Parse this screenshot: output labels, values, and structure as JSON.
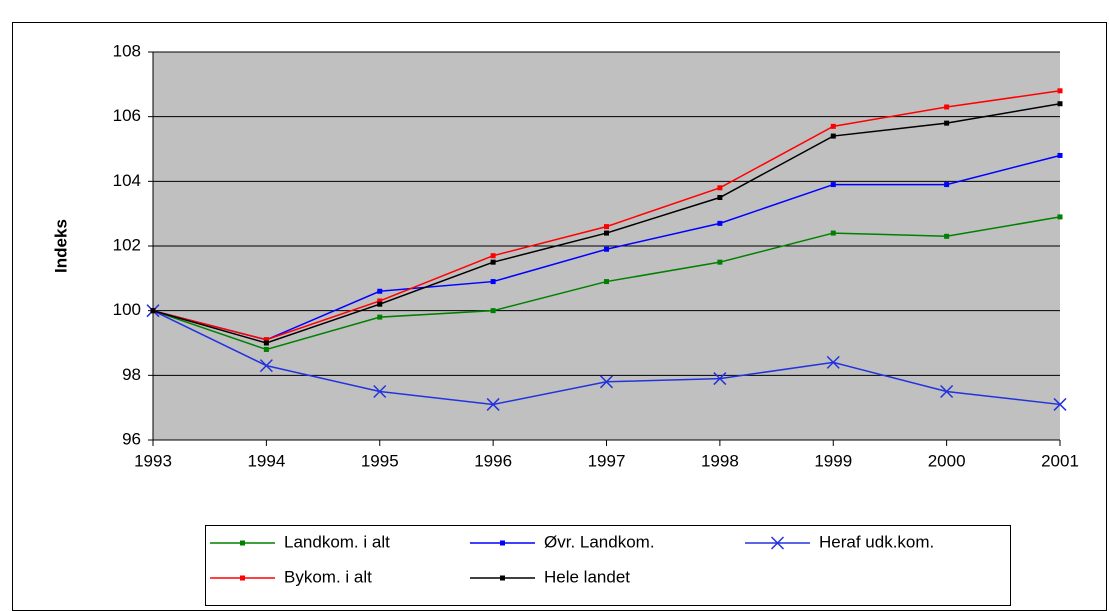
{
  "chart_data": {
    "type": "line",
    "y_label": "Indeks",
    "x": [
      1993,
      1994,
      1995,
      1996,
      1997,
      1998,
      1999,
      2000,
      2001
    ],
    "xlim": [
      1993,
      2001
    ],
    "xticks": [
      1993,
      1994,
      1995,
      1996,
      1997,
      1998,
      1999,
      2000,
      2001
    ],
    "ylim": [
      96,
      108
    ],
    "yticks": [
      96,
      98,
      100,
      102,
      104,
      106,
      108
    ],
    "grid": true,
    "plot_background": "#c0c0c0",
    "legend": "bottom",
    "series": [
      {
        "name": "Landkom. i alt",
        "color": "#008000",
        "marker": "square",
        "values": [
          100,
          98.8,
          99.8,
          100.0,
          100.9,
          101.5,
          102.4,
          102.3,
          102.9
        ]
      },
      {
        "name": "Øvr. Landkom.",
        "color": "#0000ff",
        "marker": "square",
        "values": [
          100,
          99.1,
          100.6,
          100.9,
          101.9,
          102.7,
          103.9,
          103.9,
          104.8
        ]
      },
      {
        "name": "Heraf udk.kom.",
        "color": "#2233dd",
        "marker": "x",
        "values": [
          100,
          98.3,
          97.5,
          97.1,
          97.8,
          97.9,
          98.4,
          97.5,
          97.1
        ]
      },
      {
        "name": "Bykom. i alt",
        "color": "#ff0000",
        "marker": "square",
        "values": [
          100,
          99.1,
          100.3,
          101.7,
          102.6,
          103.8,
          105.7,
          106.3,
          106.8
        ]
      },
      {
        "name": "Hele landet",
        "color": "#000000",
        "marker": "square",
        "values": [
          100,
          99.0,
          100.2,
          101.5,
          102.4,
          103.5,
          105.4,
          105.8,
          106.4
        ]
      }
    ]
  }
}
